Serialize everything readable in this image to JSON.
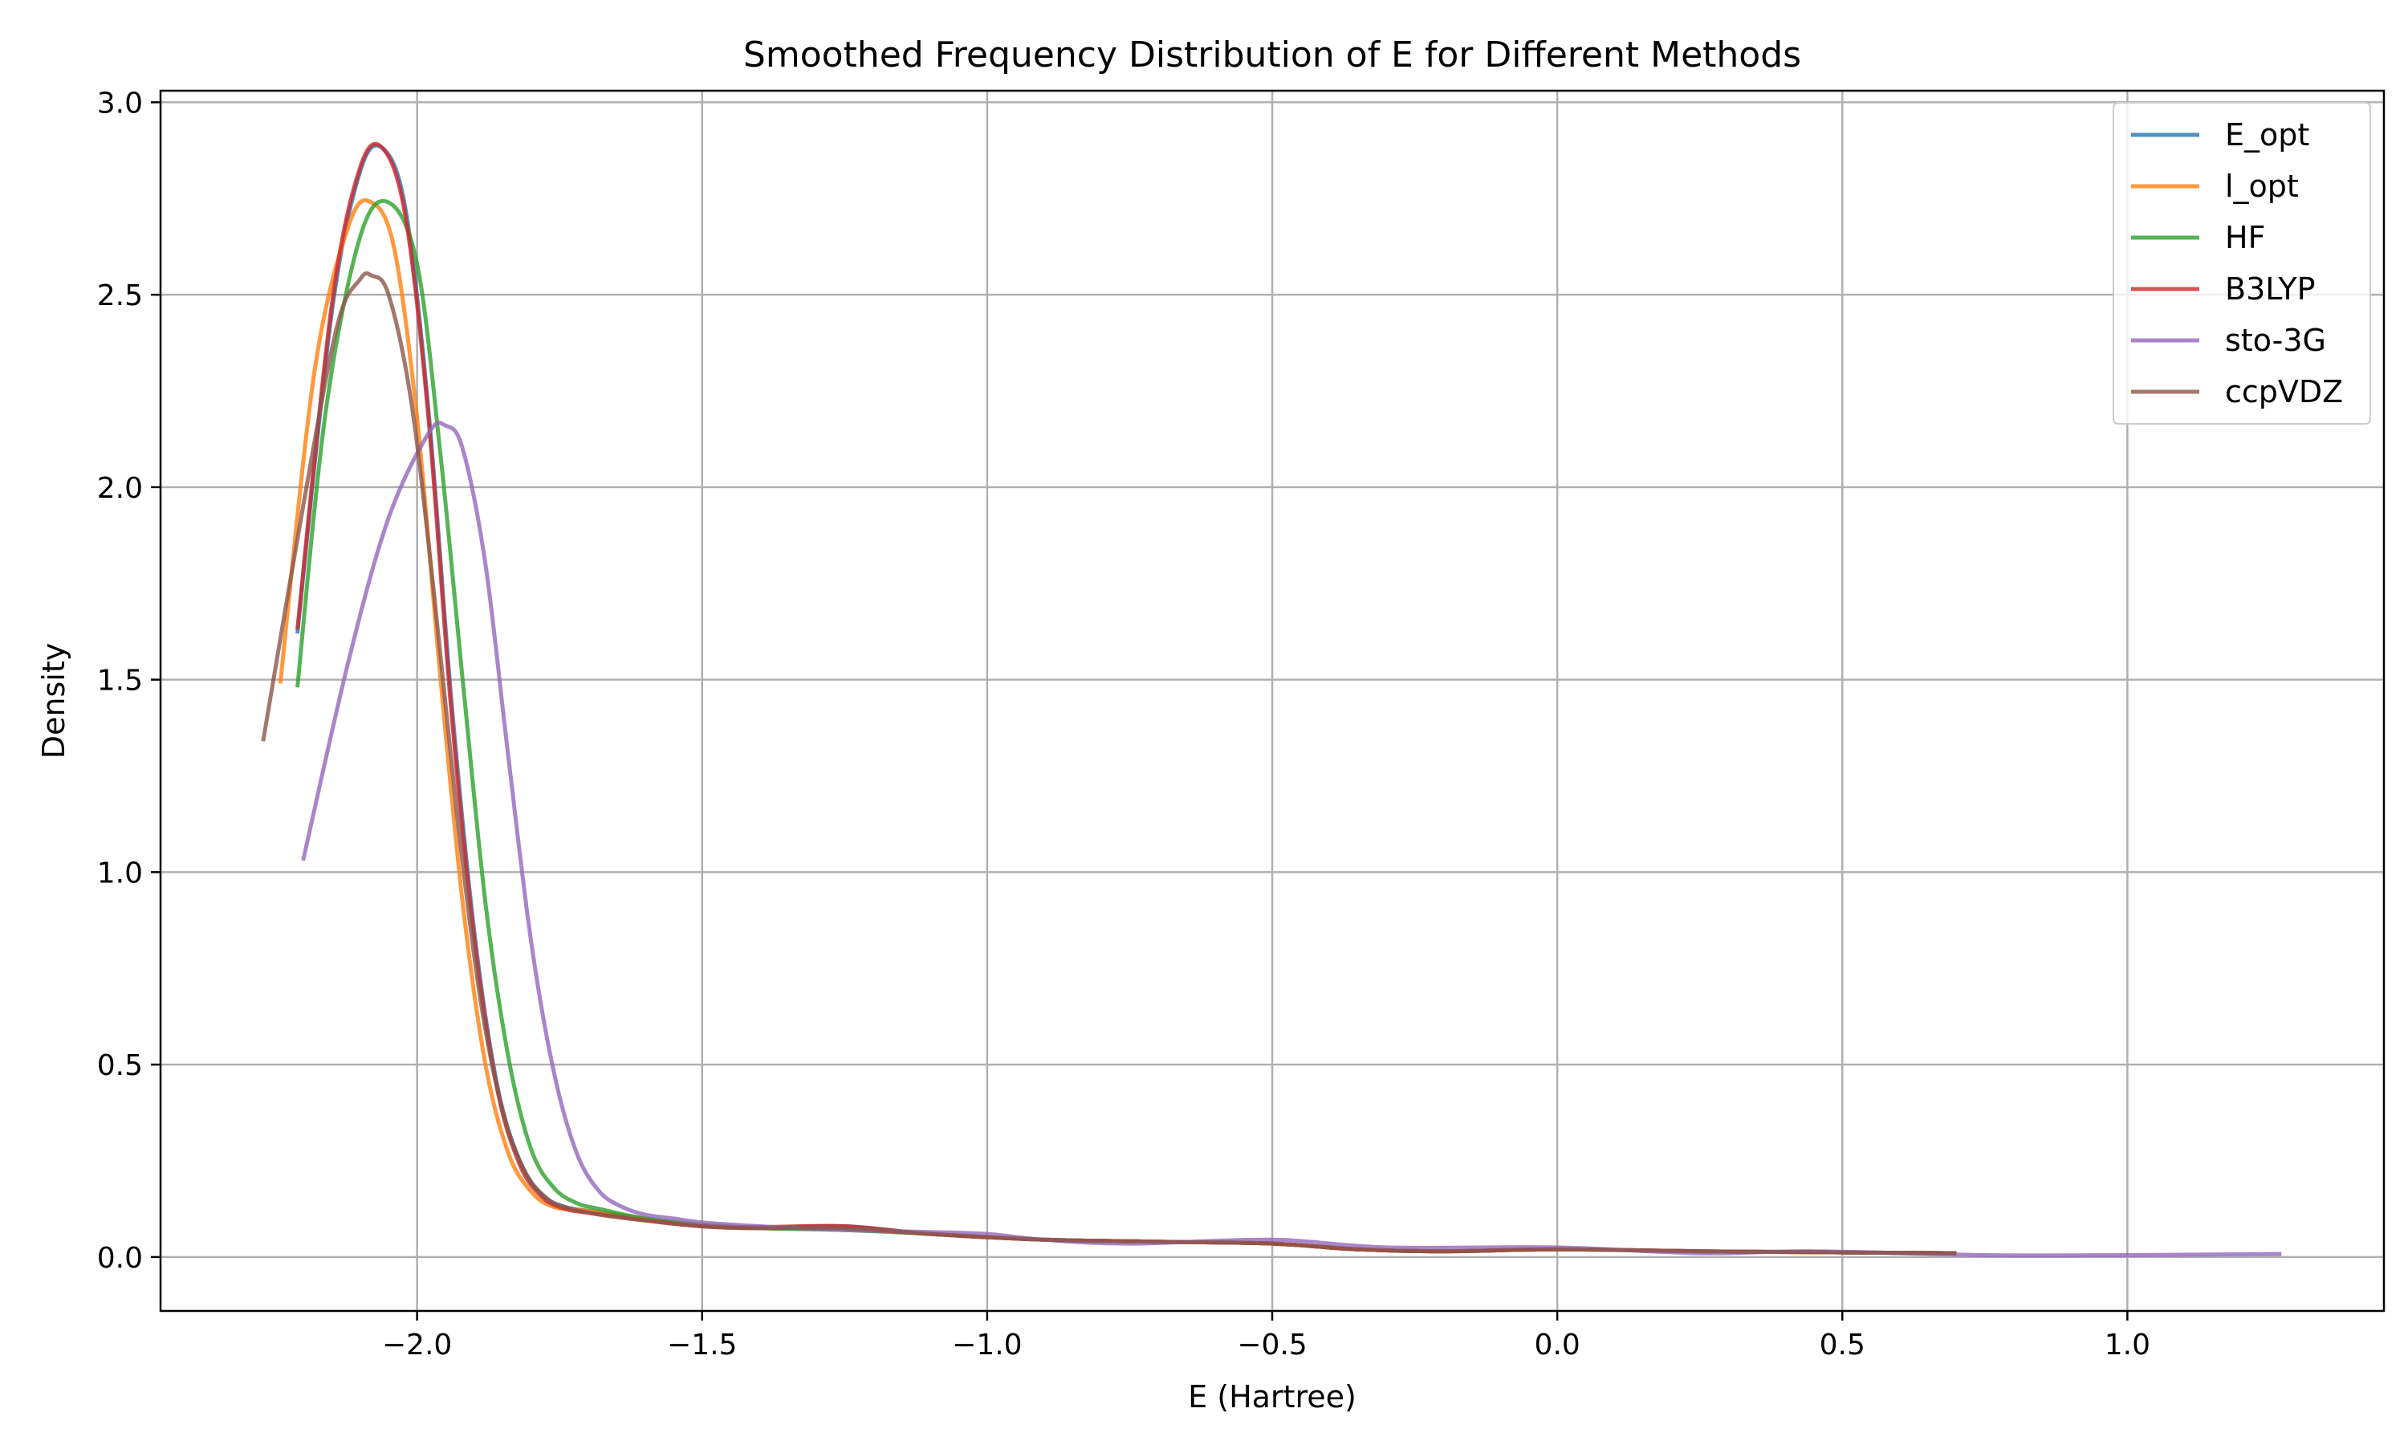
{
  "chart_data": {
    "type": "line",
    "title": "Smoothed Frequency Distribution of E for Different Methods",
    "xlabel": "E (Hartree)",
    "ylabel": "Density",
    "xlim": [
      -2.45,
      1.45
    ],
    "ylim": [
      -0.14,
      3.03
    ],
    "xticks": [
      -2.0,
      -1.5,
      -1.0,
      -0.5,
      0.0,
      0.5,
      1.0
    ],
    "xtick_labels": [
      "−2.0",
      "−1.5",
      "−1.0",
      "−0.5",
      "0.0",
      "0.5",
      "1.0"
    ],
    "yticks": [
      0.0,
      0.5,
      1.0,
      1.5,
      2.0,
      2.5,
      3.0
    ],
    "ytick_labels": [
      "0.0",
      "0.5",
      "1.0",
      "1.5",
      "2.0",
      "2.5",
      "3.0"
    ],
    "grid": true,
    "legend_position": "top-right",
    "series": [
      {
        "name": "E_opt",
        "color": "#1f77b4",
        "x": [
          -2.21,
          -2.15,
          -2.1,
          -2.06,
          -2.02,
          -1.98,
          -1.94,
          -1.9,
          -1.86,
          -1.82,
          -1.78,
          -1.74,
          -1.7,
          -1.6,
          -1.5,
          -1.4,
          -1.25,
          -1.1,
          -0.9,
          -0.7,
          -0.5,
          -0.35,
          -0.2,
          0.0,
          0.25,
          0.5,
          0.7
        ],
        "y": [
          1.62,
          2.45,
          2.82,
          2.88,
          2.72,
          2.2,
          1.45,
          0.85,
          0.45,
          0.25,
          0.16,
          0.13,
          0.12,
          0.1,
          0.08,
          0.075,
          0.08,
          0.06,
          0.045,
          0.04,
          0.035,
          0.02,
          0.015,
          0.02,
          0.015,
          0.012,
          0.01
        ]
      },
      {
        "name": "l_opt",
        "color": "#ff7f0e",
        "x": [
          -2.24,
          -2.18,
          -2.12,
          -2.08,
          -2.04,
          -2.0,
          -1.96,
          -1.92,
          -1.88,
          -1.84,
          -1.8,
          -1.76,
          -1.7,
          -1.6,
          -1.5,
          -1.4,
          -1.25,
          -1.1,
          -0.9,
          -0.7,
          -0.5,
          -0.35,
          -0.2,
          0.0,
          0.25,
          0.5,
          0.7
        ],
        "y": [
          1.49,
          2.3,
          2.68,
          2.74,
          2.62,
          2.18,
          1.52,
          0.92,
          0.5,
          0.27,
          0.17,
          0.13,
          0.12,
          0.1,
          0.08,
          0.075,
          0.075,
          0.06,
          0.045,
          0.04,
          0.035,
          0.02,
          0.015,
          0.02,
          0.015,
          0.012,
          0.01
        ]
      },
      {
        "name": "HF",
        "color": "#2ca02c",
        "x": [
          -2.21,
          -2.16,
          -2.1,
          -2.05,
          -2.0,
          -1.96,
          -1.92,
          -1.88,
          -1.84,
          -1.8,
          -1.76,
          -1.72,
          -1.68,
          -1.6,
          -1.5,
          -1.4,
          -1.25,
          -1.1,
          -0.9,
          -0.7,
          -0.5,
          -0.35,
          -0.2,
          0.0,
          0.25,
          0.5,
          0.7
        ],
        "y": [
          1.48,
          2.2,
          2.65,
          2.74,
          2.58,
          2.1,
          1.5,
          0.92,
          0.52,
          0.28,
          0.18,
          0.14,
          0.125,
          0.1,
          0.085,
          0.075,
          0.07,
          0.06,
          0.045,
          0.04,
          0.035,
          0.02,
          0.015,
          0.02,
          0.015,
          0.012,
          0.01
        ]
      },
      {
        "name": "B3LYP",
        "color": "#d62728",
        "x": [
          -2.21,
          -2.15,
          -2.1,
          -2.06,
          -2.02,
          -1.98,
          -1.94,
          -1.9,
          -1.86,
          -1.82,
          -1.78,
          -1.74,
          -1.7,
          -1.6,
          -1.5,
          -1.4,
          -1.25,
          -1.1,
          -0.9,
          -0.7,
          -0.5,
          -0.35,
          -0.2,
          0.0,
          0.25,
          0.5,
          0.7
        ],
        "y": [
          1.63,
          2.47,
          2.83,
          2.88,
          2.7,
          2.18,
          1.42,
          0.83,
          0.44,
          0.24,
          0.155,
          0.125,
          0.115,
          0.095,
          0.08,
          0.078,
          0.08,
          0.06,
          0.045,
          0.04,
          0.035,
          0.02,
          0.015,
          0.02,
          0.015,
          0.012,
          0.01
        ]
      },
      {
        "name": "sto-3G",
        "color": "#9467bd",
        "x": [
          -2.2,
          -2.12,
          -2.05,
          -1.98,
          -1.95,
          -1.92,
          -1.88,
          -1.84,
          -1.8,
          -1.76,
          -1.72,
          -1.68,
          -1.64,
          -1.6,
          -1.55,
          -1.5,
          -1.4,
          -1.25,
          -1.1,
          -1.0,
          -0.9,
          -0.75,
          -0.5,
          -0.3,
          0.0,
          0.25,
          0.45,
          0.75,
          1.0,
          1.27
        ],
        "y": [
          1.03,
          1.55,
          1.92,
          2.14,
          2.16,
          2.1,
          1.8,
          1.3,
          0.82,
          0.48,
          0.27,
          0.17,
          0.13,
          0.11,
          0.1,
          0.09,
          0.08,
          0.07,
          0.065,
          0.06,
          0.045,
          0.035,
          0.045,
          0.025,
          0.025,
          0.01,
          0.015,
          0.005,
          0.005,
          0.008
        ]
      },
      {
        "name": "ccpVDZ",
        "color": "#8c564b",
        "x": [
          -2.27,
          -2.2,
          -2.14,
          -2.1,
          -2.08,
          -2.05,
          -2.01,
          -1.97,
          -1.93,
          -1.89,
          -1.85,
          -1.81,
          -1.77,
          -1.73,
          -1.68,
          -1.6,
          -1.5,
          -1.4,
          -1.25,
          -1.1,
          -0.9,
          -0.7,
          -0.5,
          -0.35,
          -0.2,
          0.0,
          0.25,
          0.5,
          0.7
        ],
        "y": [
          1.34,
          1.95,
          2.42,
          2.54,
          2.55,
          2.5,
          2.22,
          1.72,
          1.15,
          0.68,
          0.38,
          0.22,
          0.15,
          0.125,
          0.11,
          0.095,
          0.08,
          0.075,
          0.075,
          0.06,
          0.045,
          0.04,
          0.035,
          0.02,
          0.015,
          0.02,
          0.015,
          0.012,
          0.01
        ]
      }
    ]
  }
}
